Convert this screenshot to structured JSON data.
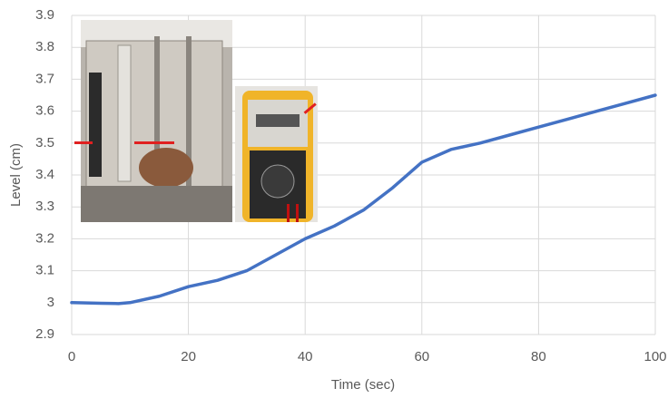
{
  "chart_data": {
    "type": "line",
    "x_label": "Time (sec)",
    "y_label": "Level (cm)",
    "x": [
      0,
      5,
      8,
      10,
      15,
      20,
      25,
      30,
      35,
      40,
      45,
      50,
      55,
      60,
      65,
      70,
      75,
      80,
      85,
      90,
      95,
      100
    ],
    "series": [
      {
        "name": "Level",
        "color": "#4472c4",
        "values": [
          3.0,
          2.998,
          2.997,
          3.0,
          3.02,
          3.05,
          3.07,
          3.1,
          3.15,
          3.2,
          3.24,
          3.29,
          3.36,
          3.44,
          3.48,
          3.5,
          3.525,
          3.55,
          3.575,
          3.6,
          3.625,
          3.65
        ]
      }
    ],
    "xlim": [
      0,
      100
    ],
    "xticks": [
      0,
      20,
      40,
      60,
      80,
      100
    ],
    "ylim": [
      2.9,
      3.9
    ],
    "yticks": [
      2.9,
      3,
      3.1,
      3.2,
      3.3,
      3.4,
      3.5,
      3.6,
      3.7,
      3.8,
      3.9
    ],
    "grid": true
  }
}
